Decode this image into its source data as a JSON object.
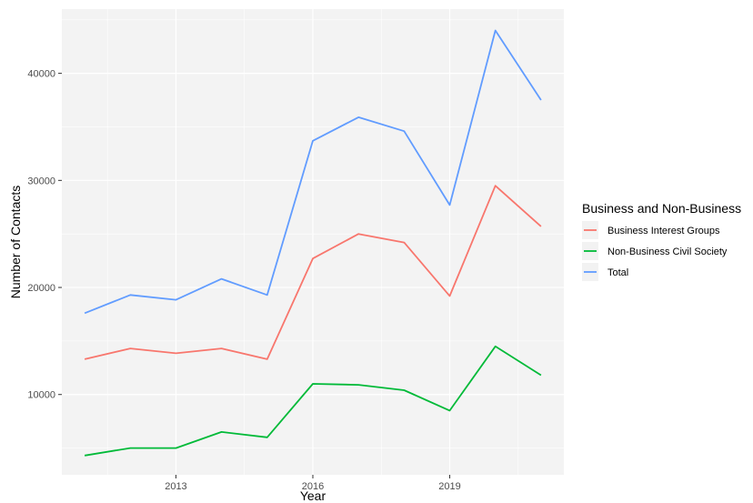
{
  "chart_data": {
    "type": "line",
    "title": "",
    "xlabel": "Year",
    "ylabel": "Number of Contacts",
    "x": [
      2011,
      2012,
      2013,
      2014,
      2015,
      2016,
      2017,
      2018,
      2019,
      2020,
      2021
    ],
    "xlim": [
      2010.5,
      2021.5
    ],
    "ylim": [
      2500,
      46000
    ],
    "xticks": [
      2013,
      2016,
      2019
    ],
    "yticks": [
      10000,
      20000,
      30000,
      40000
    ],
    "grid": true,
    "background": "#f3f3f3",
    "legend": {
      "title": "Business and Non-Business",
      "placement": "right"
    },
    "series": [
      {
        "name": "Business Interest Groups",
        "color": "#f8766d",
        "values": [
          13300,
          14300,
          13850,
          14300,
          13300,
          22700,
          25000,
          24200,
          19200,
          29500,
          25700
        ]
      },
      {
        "name": "Non-Business Civil Society",
        "color": "#00ba38",
        "values": [
          4300,
          5000,
          5000,
          6500,
          6000,
          11000,
          10900,
          10400,
          8500,
          14500,
          11800
        ]
      },
      {
        "name": "Total",
        "color": "#619cff",
        "values": [
          17600,
          19300,
          18850,
          20800,
          19300,
          33700,
          35900,
          34600,
          27700,
          44000,
          37500
        ]
      }
    ]
  }
}
